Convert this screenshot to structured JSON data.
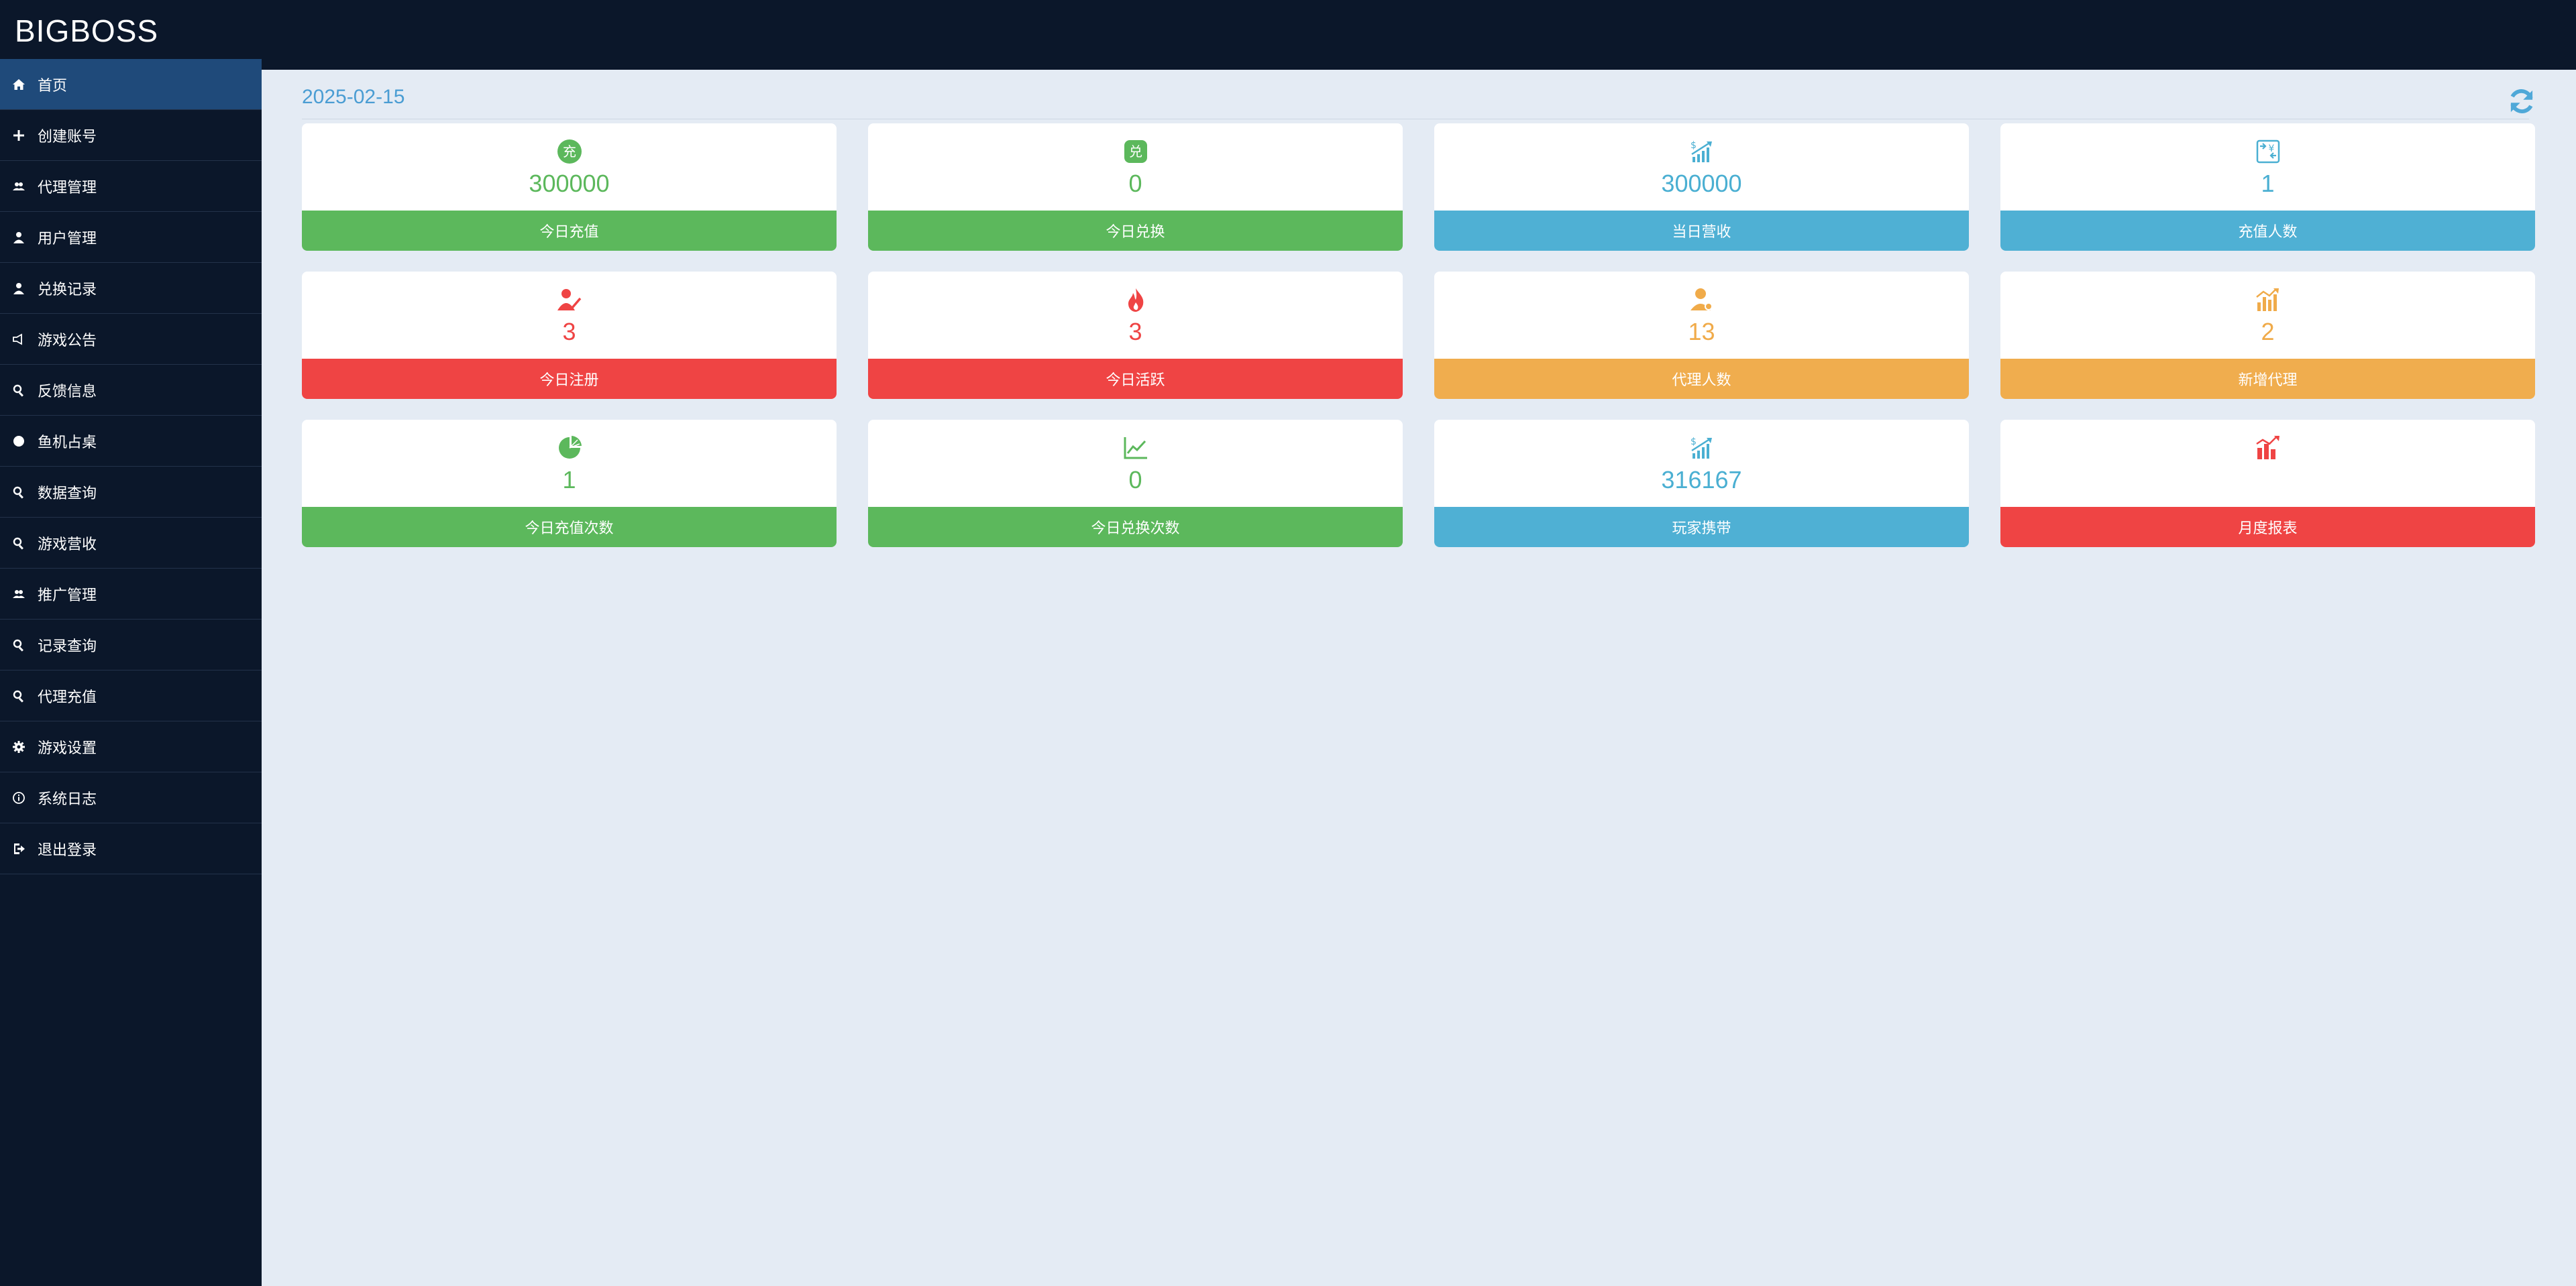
{
  "app": {
    "brand": "BIGBOSS"
  },
  "sidebar": {
    "items": [
      {
        "label": "首页",
        "icon": "home-icon",
        "active": true
      },
      {
        "label": "创建账号",
        "icon": "plus-icon"
      },
      {
        "label": "代理管理",
        "icon": "users-icon"
      },
      {
        "label": "用户管理",
        "icon": "user-icon"
      },
      {
        "label": "兑换记录",
        "icon": "user-icon"
      },
      {
        "label": "游戏公告",
        "icon": "megaphone-icon"
      },
      {
        "label": "反馈信息",
        "icon": "search-icon"
      },
      {
        "label": "鱼机占桌",
        "icon": "circle-icon"
      },
      {
        "label": "数据查询",
        "icon": "search-icon"
      },
      {
        "label": "游戏营收",
        "icon": "search-icon"
      },
      {
        "label": "推广管理",
        "icon": "users-icon"
      },
      {
        "label": "记录查询",
        "icon": "search-icon"
      },
      {
        "label": "代理充值",
        "icon": "search-icon"
      },
      {
        "label": "游戏设置",
        "icon": "gear-icon"
      },
      {
        "label": "系统日志",
        "icon": "info-icon"
      },
      {
        "label": "退出登录",
        "icon": "logout-icon"
      }
    ]
  },
  "header": {
    "date": "2025-02-15",
    "refresh_icon": "refresh-icon"
  },
  "cards": [
    {
      "value": "300000",
      "label": "今日充值",
      "color": "green",
      "icon": "recharge-icon"
    },
    {
      "value": "0",
      "label": "今日兑换",
      "color": "green",
      "icon": "exchange-icon"
    },
    {
      "value": "300000",
      "label": "当日营收",
      "color": "blue",
      "icon": "revenue-chart-icon"
    },
    {
      "value": "1",
      "label": "充值人数",
      "color": "blue",
      "icon": "yen-exchange-icon"
    },
    {
      "value": "3",
      "label": "今日注册",
      "color": "red",
      "icon": "user-register-icon"
    },
    {
      "value": "3",
      "label": "今日活跃",
      "color": "red",
      "icon": "fire-icon"
    },
    {
      "value": "13",
      "label": "代理人数",
      "color": "orange",
      "icon": "agent-icon"
    },
    {
      "value": "2",
      "label": "新增代理",
      "color": "orange",
      "icon": "growth-bars-icon"
    },
    {
      "value": "1",
      "label": "今日充值次数",
      "color": "green",
      "icon": "pie-chart-icon"
    },
    {
      "value": "0",
      "label": "今日兑换次数",
      "color": "green",
      "icon": "line-chart-icon"
    },
    {
      "value": "316167",
      "label": "玩家携带",
      "color": "blue",
      "icon": "revenue-chart-icon"
    },
    {
      "value": "",
      "label": "月度报表",
      "color": "red",
      "icon": "bar-chart-icon"
    }
  ],
  "colors": {
    "green": "#5cb85c",
    "blue": "#4fb0d4",
    "red": "#ef4444",
    "orange": "#f0ad4e",
    "sidebar_bg": "#0b172a",
    "sidebar_active": "#1f4a7a",
    "content_bg": "#e4ebf4"
  }
}
